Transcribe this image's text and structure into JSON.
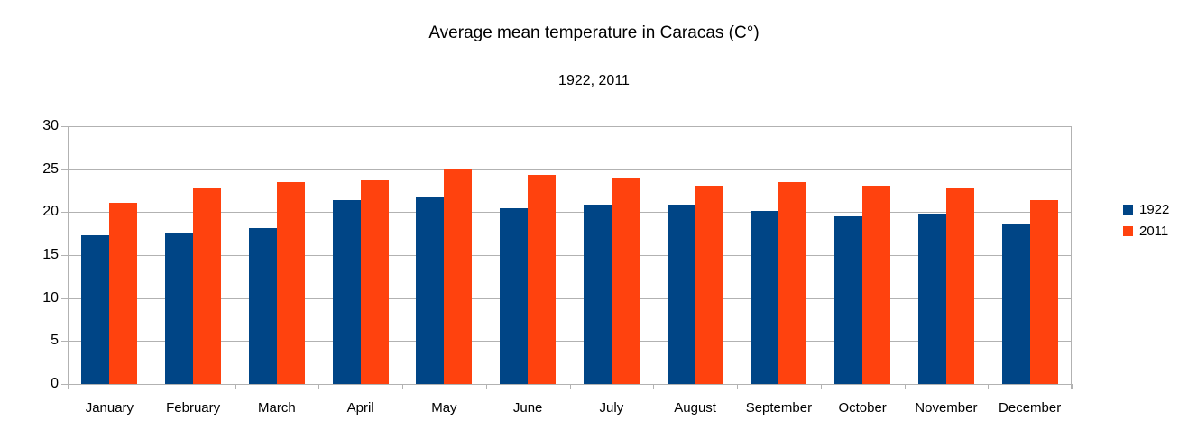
{
  "chart_data": {
    "type": "bar",
    "title": "Average mean temperature in Caracas (C°)",
    "subtitle": "1922, 2011",
    "categories": [
      "January",
      "February",
      "March",
      "April",
      "May",
      "June",
      "July",
      "August",
      "September",
      "October",
      "November",
      "December"
    ],
    "series": [
      {
        "name": "1922",
        "color": "#004586",
        "values": [
          17.3,
          17.6,
          18.1,
          21.4,
          21.7,
          20.5,
          20.9,
          20.9,
          20.1,
          19.5,
          19.8,
          18.6
        ]
      },
      {
        "name": "2011",
        "color": "#FF420E",
        "values": [
          21.1,
          22.8,
          23.5,
          23.7,
          25.0,
          24.3,
          24.0,
          23.1,
          23.5,
          23.1,
          22.8,
          21.4
        ]
      }
    ],
    "ylabel": "",
    "xlabel": "",
    "ylim": [
      0,
      30
    ],
    "ytick_step": 5,
    "ytick_labels": [
      "0",
      "5",
      "10",
      "15",
      "20",
      "25",
      "30"
    ],
    "grid": "horizontal-on",
    "legend_position": "right",
    "axis_color": "#b2b2b2",
    "text_color": "#000000",
    "background_color": "#ffffff"
  }
}
